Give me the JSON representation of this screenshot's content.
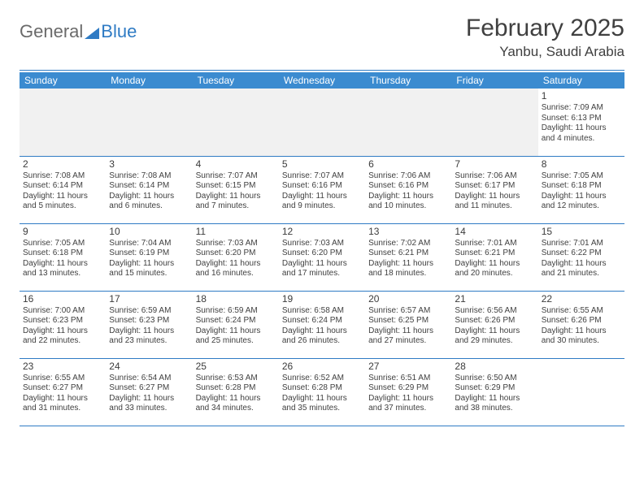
{
  "logo": {
    "text1": "General",
    "text2": "Blue"
  },
  "title": "February 2025",
  "location": "Yanbu, Saudi Arabia",
  "weekdays": [
    "Sunday",
    "Monday",
    "Tuesday",
    "Wednesday",
    "Thursday",
    "Friday",
    "Saturday"
  ],
  "colors": {
    "header_bg": "#3b8bd0",
    "rule": "#2f7bc4",
    "blank_bg": "#f1f1f1"
  },
  "days": {
    "1": {
      "sunrise": "7:09 AM",
      "sunset": "6:13 PM",
      "daylight": "11 hours and 4 minutes."
    },
    "2": {
      "sunrise": "7:08 AM",
      "sunset": "6:14 PM",
      "daylight": "11 hours and 5 minutes."
    },
    "3": {
      "sunrise": "7:08 AM",
      "sunset": "6:14 PM",
      "daylight": "11 hours and 6 minutes."
    },
    "4": {
      "sunrise": "7:07 AM",
      "sunset": "6:15 PM",
      "daylight": "11 hours and 7 minutes."
    },
    "5": {
      "sunrise": "7:07 AM",
      "sunset": "6:16 PM",
      "daylight": "11 hours and 9 minutes."
    },
    "6": {
      "sunrise": "7:06 AM",
      "sunset": "6:16 PM",
      "daylight": "11 hours and 10 minutes."
    },
    "7": {
      "sunrise": "7:06 AM",
      "sunset": "6:17 PM",
      "daylight": "11 hours and 11 minutes."
    },
    "8": {
      "sunrise": "7:05 AM",
      "sunset": "6:18 PM",
      "daylight": "11 hours and 12 minutes."
    },
    "9": {
      "sunrise": "7:05 AM",
      "sunset": "6:18 PM",
      "daylight": "11 hours and 13 minutes."
    },
    "10": {
      "sunrise": "7:04 AM",
      "sunset": "6:19 PM",
      "daylight": "11 hours and 15 minutes."
    },
    "11": {
      "sunrise": "7:03 AM",
      "sunset": "6:20 PM",
      "daylight": "11 hours and 16 minutes."
    },
    "12": {
      "sunrise": "7:03 AM",
      "sunset": "6:20 PM",
      "daylight": "11 hours and 17 minutes."
    },
    "13": {
      "sunrise": "7:02 AM",
      "sunset": "6:21 PM",
      "daylight": "11 hours and 18 minutes."
    },
    "14": {
      "sunrise": "7:01 AM",
      "sunset": "6:21 PM",
      "daylight": "11 hours and 20 minutes."
    },
    "15": {
      "sunrise": "7:01 AM",
      "sunset": "6:22 PM",
      "daylight": "11 hours and 21 minutes."
    },
    "16": {
      "sunrise": "7:00 AM",
      "sunset": "6:23 PM",
      "daylight": "11 hours and 22 minutes."
    },
    "17": {
      "sunrise": "6:59 AM",
      "sunset": "6:23 PM",
      "daylight": "11 hours and 23 minutes."
    },
    "18": {
      "sunrise": "6:59 AM",
      "sunset": "6:24 PM",
      "daylight": "11 hours and 25 minutes."
    },
    "19": {
      "sunrise": "6:58 AM",
      "sunset": "6:24 PM",
      "daylight": "11 hours and 26 minutes."
    },
    "20": {
      "sunrise": "6:57 AM",
      "sunset": "6:25 PM",
      "daylight": "11 hours and 27 minutes."
    },
    "21": {
      "sunrise": "6:56 AM",
      "sunset": "6:26 PM",
      "daylight": "11 hours and 29 minutes."
    },
    "22": {
      "sunrise": "6:55 AM",
      "sunset": "6:26 PM",
      "daylight": "11 hours and 30 minutes."
    },
    "23": {
      "sunrise": "6:55 AM",
      "sunset": "6:27 PM",
      "daylight": "11 hours and 31 minutes."
    },
    "24": {
      "sunrise": "6:54 AM",
      "sunset": "6:27 PM",
      "daylight": "11 hours and 33 minutes."
    },
    "25": {
      "sunrise": "6:53 AM",
      "sunset": "6:28 PM",
      "daylight": "11 hours and 34 minutes."
    },
    "26": {
      "sunrise": "6:52 AM",
      "sunset": "6:28 PM",
      "daylight": "11 hours and 35 minutes."
    },
    "27": {
      "sunrise": "6:51 AM",
      "sunset": "6:29 PM",
      "daylight": "11 hours and 37 minutes."
    },
    "28": {
      "sunrise": "6:50 AM",
      "sunset": "6:29 PM",
      "daylight": "11 hours and 38 minutes."
    }
  },
  "grid": [
    [
      null,
      null,
      null,
      null,
      null,
      null,
      "1"
    ],
    [
      "2",
      "3",
      "4",
      "5",
      "6",
      "7",
      "8"
    ],
    [
      "9",
      "10",
      "11",
      "12",
      "13",
      "14",
      "15"
    ],
    [
      "16",
      "17",
      "18",
      "19",
      "20",
      "21",
      "22"
    ],
    [
      "23",
      "24",
      "25",
      "26",
      "27",
      "28",
      null
    ]
  ]
}
